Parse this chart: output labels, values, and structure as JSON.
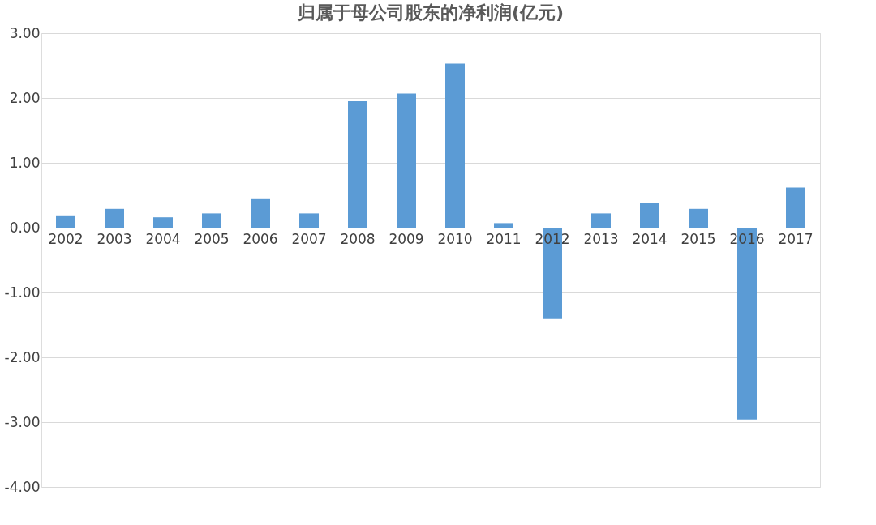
{
  "chart_data": {
    "type": "bar",
    "title": "归属于母公司股东的净利润(亿元)",
    "categories": [
      "2002",
      "2003",
      "2004",
      "2005",
      "2006",
      "2007",
      "2008",
      "2009",
      "2010",
      "2011",
      "2012",
      "2013",
      "2014",
      "2015",
      "2016",
      "2017"
    ],
    "values": [
      0.19,
      0.29,
      0.16,
      0.22,
      0.44,
      0.22,
      1.95,
      2.07,
      2.53,
      0.07,
      -1.41,
      0.22,
      0.38,
      0.29,
      -2.96,
      0.62
    ],
    "color": "#5b9bd5",
    "ylim": [
      -4,
      3
    ],
    "yticks": [
      {
        "value": -4,
        "label": "-4.00"
      },
      {
        "value": -3,
        "label": "-3.00"
      },
      {
        "value": -2,
        "label": "-2.00"
      },
      {
        "value": -1,
        "label": "-1.00"
      },
      {
        "value": 0,
        "label": "0.00"
      },
      {
        "value": 1,
        "label": "1.00"
      },
      {
        "value": 2,
        "label": "2.00"
      },
      {
        "value": 3,
        "label": "3.00"
      }
    ],
    "grid": "y"
  }
}
